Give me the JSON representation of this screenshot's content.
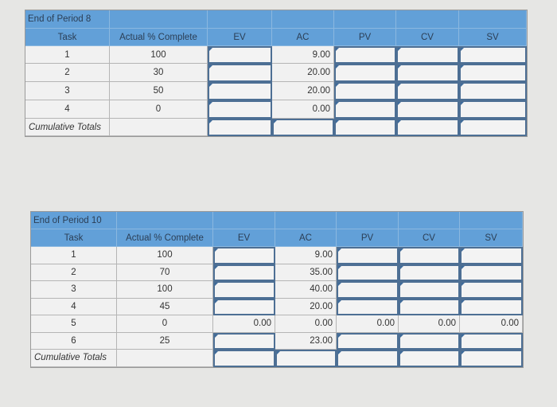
{
  "tables": [
    {
      "title": "End of Period 8",
      "headers": [
        "Task",
        "Actual % Complete",
        "EV",
        "AC",
        "PV",
        "CV",
        "SV"
      ],
      "rows": [
        {
          "cells": [
            "1",
            "100",
            null,
            "9.00",
            null,
            null,
            null
          ]
        },
        {
          "cells": [
            "2",
            "30",
            null,
            "20.00",
            null,
            null,
            null
          ]
        },
        {
          "cells": [
            "3",
            "50",
            null,
            "20.00",
            null,
            null,
            null
          ]
        },
        {
          "cells": [
            "4",
            "0",
            null,
            "0.00",
            null,
            null,
            null
          ]
        }
      ],
      "totals": {
        "label": "Cumulative Totals",
        "cells": [
          "",
          null,
          null,
          null,
          null,
          null
        ]
      }
    },
    {
      "title": "End of Period 10",
      "headers": [
        "Task",
        "Actual % Complete",
        "EV",
        "AC",
        "PV",
        "CV",
        "SV"
      ],
      "rows": [
        {
          "cells": [
            "1",
            "100",
            null,
            "9.00",
            null,
            null,
            null
          ]
        },
        {
          "cells": [
            "2",
            "70",
            null,
            "35.00",
            null,
            null,
            null
          ]
        },
        {
          "cells": [
            "3",
            "100",
            null,
            "40.00",
            null,
            null,
            null
          ]
        },
        {
          "cells": [
            "4",
            "45",
            null,
            "20.00",
            null,
            null,
            null
          ]
        },
        {
          "cells": [
            "5",
            "0",
            "0.00",
            "0.00",
            "0.00",
            "0.00",
            "0.00"
          ]
        },
        {
          "cells": [
            "6",
            "25",
            null,
            "23.00",
            null,
            null,
            null
          ]
        }
      ],
      "totals": {
        "label": "Cumulative Totals",
        "cells": [
          "",
          null,
          null,
          null,
          null,
          null
        ]
      }
    }
  ],
  "colors": {
    "header": "#62a0d8",
    "input_border": "#4d6f94"
  }
}
